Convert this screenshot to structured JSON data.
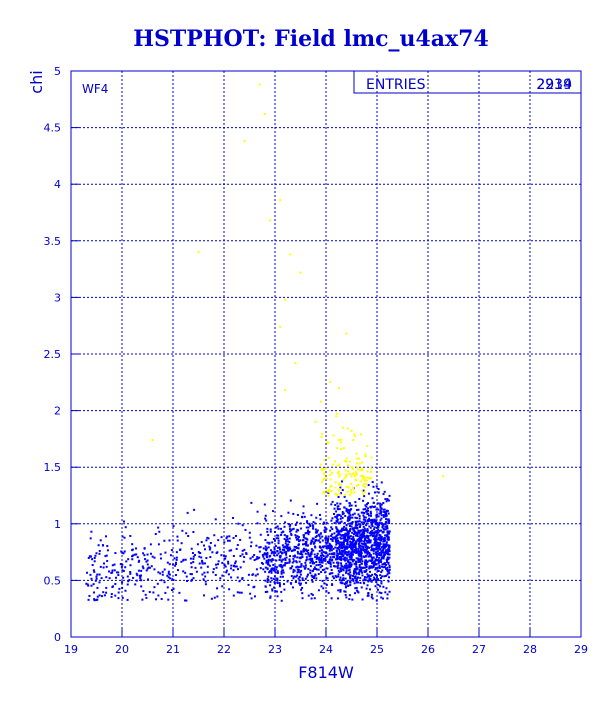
{
  "colors": {
    "frame": "#0000cc",
    "grid": "#0000cc",
    "series_blue": "#0000ff",
    "series_yellow": "#ffff00",
    "text": "#0000cc"
  },
  "chart_data": {
    "type": "scatter",
    "title": "HSTPHOT: Field lmc_u4ax74",
    "xlabel": "F814W",
    "ylabel": "chi",
    "xlim": [
      19,
      29
    ],
    "ylim": [
      0,
      5
    ],
    "x_ticks": [
      19,
      20,
      21,
      22,
      23,
      24,
      25,
      26,
      27,
      28,
      29
    ],
    "y_ticks": [
      0,
      0.5,
      1,
      1.5,
      2,
      2.5,
      3,
      3.5,
      4,
      4.5,
      5
    ],
    "grid": true,
    "panel_label": "WF4",
    "stats_box": {
      "label": "ENTRIES",
      "values_overprinted": [
        "2934",
        "2219"
      ]
    },
    "series": [
      {
        "color": "#0000ff",
        "point_count": 2219,
        "sample_points": [
          [
            19.4,
            0.93
          ],
          [
            19.5,
            0.74
          ],
          [
            19.6,
            0.52
          ],
          [
            19.7,
            0.62
          ],
          [
            19.8,
            0.38
          ],
          [
            20.0,
            0.48
          ],
          [
            20.2,
            0.82
          ],
          [
            20.4,
            0.33
          ],
          [
            20.6,
            0.71
          ],
          [
            20.8,
            0.55
          ],
          [
            21.0,
            0.64
          ],
          [
            21.2,
            0.58
          ],
          [
            21.4,
            0.69
          ],
          [
            21.6,
            0.51
          ],
          [
            21.8,
            0.6
          ],
          [
            22.0,
            0.72
          ],
          [
            22.2,
            0.63
          ],
          [
            22.4,
            0.77
          ],
          [
            22.6,
            0.68
          ],
          [
            22.8,
            0.74
          ],
          [
            23.0,
            0.85
          ],
          [
            23.2,
            0.79
          ],
          [
            23.4,
            0.9
          ],
          [
            23.6,
            0.82
          ],
          [
            23.8,
            0.95
          ],
          [
            24.0,
            0.88
          ],
          [
            24.2,
            0.97
          ],
          [
            24.4,
            0.86
          ],
          [
            24.6,
            0.92
          ],
          [
            24.8,
            0.85
          ],
          [
            25.0,
            0.78
          ],
          [
            25.2,
            0.9
          ]
        ]
      },
      {
        "color": "#ffff00",
        "sample_points": [
          [
            22.7,
            4.88
          ],
          [
            22.8,
            4.62
          ],
          [
            22.4,
            4.38
          ],
          [
            23.1,
            3.86
          ],
          [
            22.9,
            3.68
          ],
          [
            23.3,
            3.38
          ],
          [
            23.5,
            3.22
          ],
          [
            23.2,
            2.98
          ],
          [
            23.1,
            2.74
          ],
          [
            24.4,
            2.68
          ],
          [
            23.4,
            2.42
          ],
          [
            23.2,
            2.18
          ],
          [
            23.9,
            2.08
          ],
          [
            24.2,
            1.95
          ],
          [
            24.5,
            1.82
          ],
          [
            24.3,
            1.72
          ],
          [
            24.6,
            1.62
          ],
          [
            24.4,
            1.55
          ],
          [
            24.7,
            1.48
          ],
          [
            24.5,
            1.42
          ],
          [
            26.3,
            1.42
          ],
          [
            20.6,
            1.74
          ],
          [
            21.5,
            3.4
          ],
          [
            23.8,
            1.9
          ],
          [
            24.8,
            1.35
          ]
        ]
      }
    ]
  }
}
